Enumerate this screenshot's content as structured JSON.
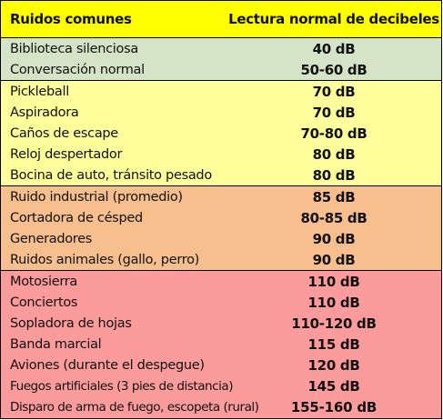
{
  "table": {
    "headers": [
      "Ruidos comunes",
      "Lectura normal de decibeles"
    ],
    "colors": {
      "header": "#ffff00",
      "quiet": "#d5e4c7",
      "moderate": "#ffff9c",
      "loud": "#f7be8e",
      "very_loud": "#fb9b9b"
    },
    "rows": [
      {
        "sound": "Biblioteca silenciosa",
        "db": "40 dB",
        "group": "quiet"
      },
      {
        "sound": "Conversación normal",
        "db": "50-60 dB",
        "group": "quiet"
      },
      {
        "sound": "Pickleball",
        "db": "70 dB",
        "group": "moderate"
      },
      {
        "sound": "Aspiradora",
        "db": "70 dB",
        "group": "moderate"
      },
      {
        "sound": "Caños de escape",
        "db": "70-80 dB",
        "group": "moderate"
      },
      {
        "sound": "Reloj despertador",
        "db": "80 dB",
        "group": "moderate"
      },
      {
        "sound": "Bocina de auto, tránsito pesado",
        "db": "80 dB",
        "group": "moderate"
      },
      {
        "sound": "Ruido industrial (promedio)",
        "db": "85 dB",
        "group": "loud"
      },
      {
        "sound": "Cortadora de césped",
        "db": "80-85 dB",
        "group": "loud"
      },
      {
        "sound": "Generadores",
        "db": "90 dB",
        "group": "loud"
      },
      {
        "sound": "Ruidos animales (gallo, perro)",
        "db": "90 dB",
        "group": "loud"
      },
      {
        "sound": "Motosierra",
        "db": "110 dB",
        "group": "very_loud"
      },
      {
        "sound": "Conciertos",
        "db": "110 dB",
        "group": "very_loud"
      },
      {
        "sound": "Sopladora de hojas",
        "db": "110-120 dB",
        "group": "very_loud"
      },
      {
        "sound": "Banda marcial",
        "db": "115 dB",
        "group": "very_loud"
      },
      {
        "sound": "Aviones (durante el despegue)",
        "db": "120 dB",
        "group": "very_loud"
      },
      {
        "sound": "Fuegos artificiales (3 pies de distancia)",
        "db": "145 dB",
        "group": "very_loud"
      },
      {
        "sound": "Disparo de arma de fuego, escopeta (rural)",
        "db": "155-160 dB",
        "group": "very_loud"
      }
    ]
  }
}
